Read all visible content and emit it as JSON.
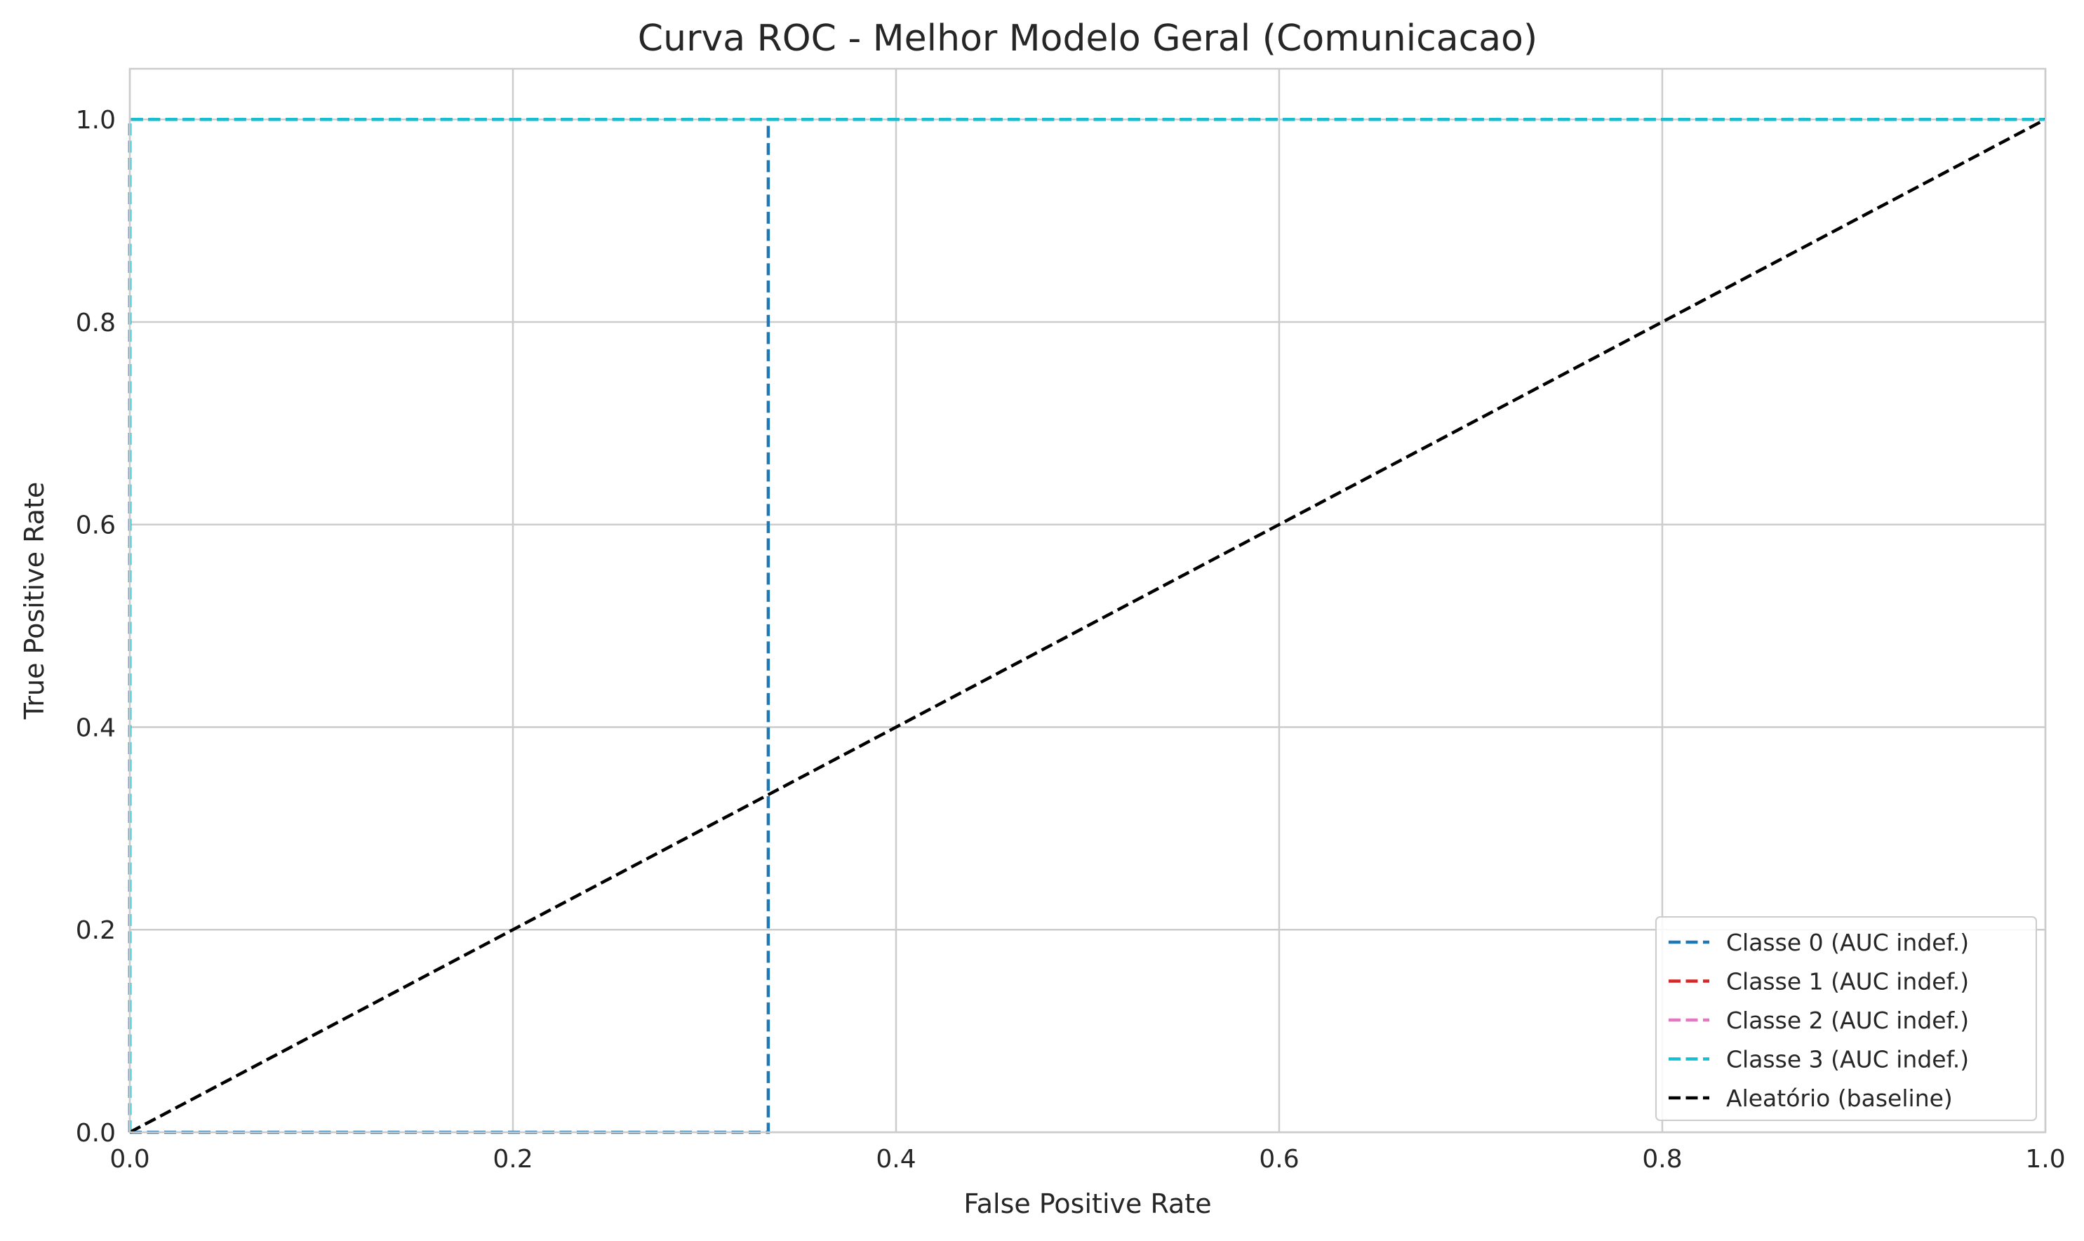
{
  "chart_data": {
    "type": "line",
    "title": "Curva ROC - Melhor Modelo Geral (Comunicacao)",
    "xlabel": "False Positive Rate",
    "ylabel": "True Positive Rate",
    "xlim": [
      0.0,
      1.0
    ],
    "ylim": [
      0.0,
      1.05
    ],
    "x_ticks": [
      0.0,
      0.2,
      0.4,
      0.6,
      0.8,
      1.0
    ],
    "y_ticks": [
      0.0,
      0.2,
      0.4,
      0.6,
      0.8,
      1.0
    ],
    "x_tick_labels": [
      "0.0",
      "0.2",
      "0.4",
      "0.6",
      "0.8",
      "1.0"
    ],
    "y_tick_labels": [
      "0.0",
      "0.2",
      "0.4",
      "0.6",
      "0.8",
      "1.0"
    ],
    "grid": true,
    "legend_position": "bottom-right",
    "series": [
      {
        "name": "Classe 0 (AUC indef.)",
        "color": "#1f77b4",
        "dash": "dashed",
        "x": [
          0.0,
          0.3333,
          0.3333,
          1.0
        ],
        "y": [
          0.0,
          0.0,
          1.0,
          1.0
        ]
      },
      {
        "name": "Classe 1 (AUC indef.)",
        "color": "#d62728",
        "dash": "dashed",
        "x": [
          0.0,
          0.0,
          1.0
        ],
        "y": [
          0.0,
          1.0,
          1.0
        ]
      },
      {
        "name": "Classe 2 (AUC indef.)",
        "color": "#e377c2",
        "dash": "dashed",
        "x": [
          0.0,
          0.0,
          1.0
        ],
        "y": [
          0.0,
          1.0,
          1.0
        ]
      },
      {
        "name": "Classe 3 (AUC indef.)",
        "color": "#17becf",
        "dash": "dashed",
        "x": [
          0.0,
          0.0,
          1.0
        ],
        "y": [
          0.0,
          1.0,
          1.0
        ]
      },
      {
        "name": "Aleatório (baseline)",
        "color": "#000000",
        "dash": "dashed",
        "x": [
          0.0,
          1.0
        ],
        "y": [
          0.0,
          1.0
        ]
      }
    ]
  }
}
